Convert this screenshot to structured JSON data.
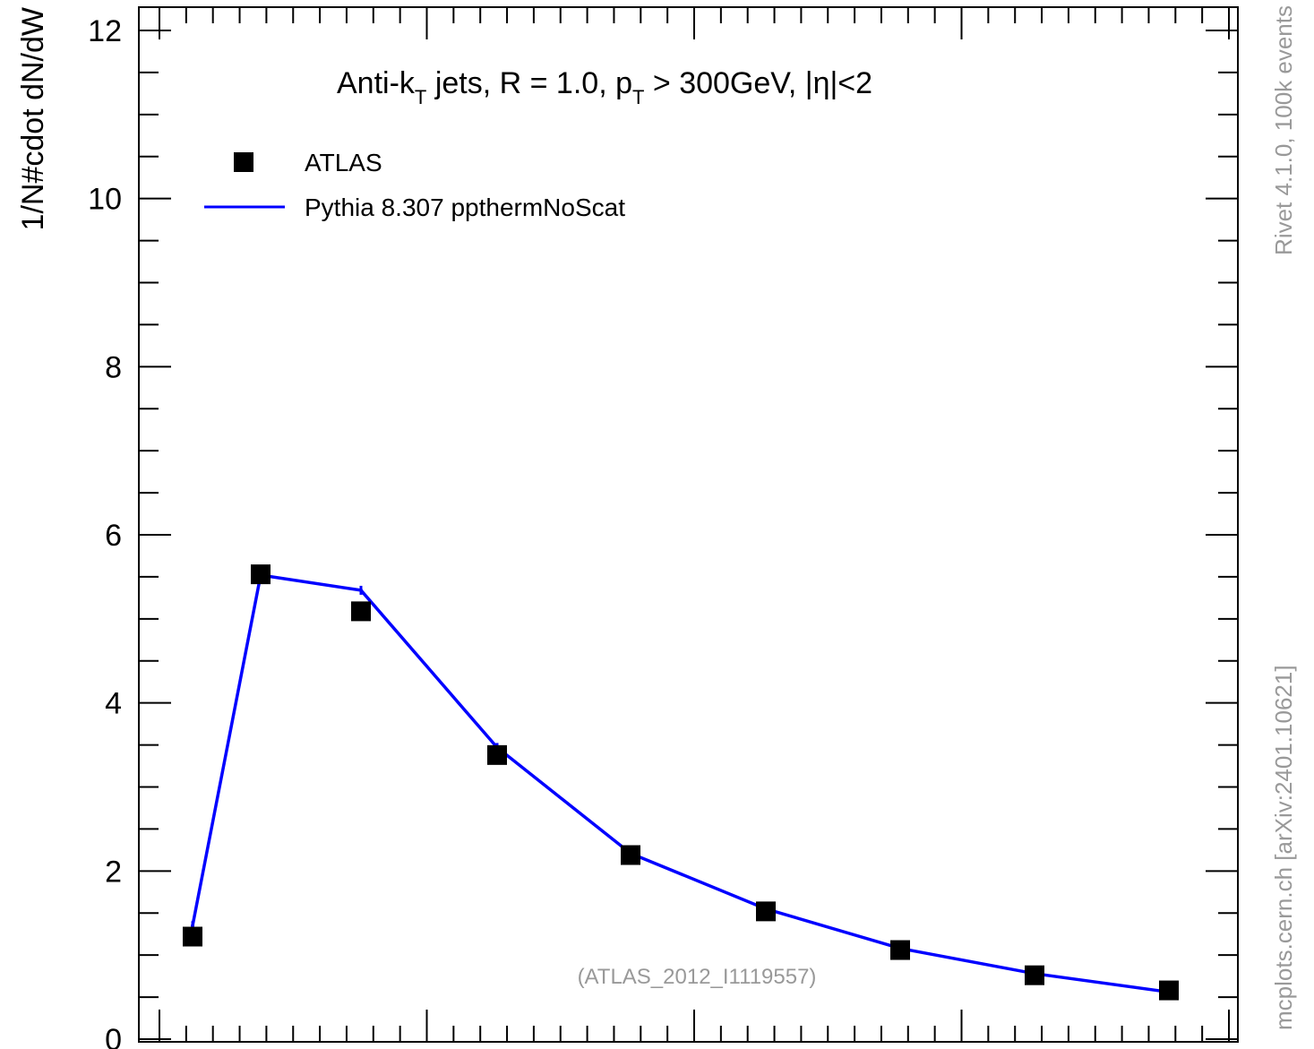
{
  "chart_data": {
    "type": "line",
    "title": "Anti-kT jets, R = 1.0, pT > 300GeV, |η|<2",
    "title_parts": {
      "lead": "Anti-k",
      "sub1": "T",
      "mid": " jets, R = 1.0, p",
      "sub2": "T",
      "tail": " > 300GeV, |η|<2"
    },
    "ylabel": "1/N#cdot dN/dW",
    "xlabel": "",
    "ylim": [
      0,
      12
    ],
    "y_ticks": [
      "0",
      "2",
      "4",
      "6",
      "8",
      "10",
      "12"
    ],
    "grid": false,
    "legend_position": "top-left",
    "x": [
      1,
      2,
      3,
      4,
      5,
      6,
      7,
      8,
      9
    ],
    "series": [
      {
        "name": "ATLAS",
        "marker": "square",
        "color": "#000000",
        "values": [
          1.22,
          5.53,
          5.09,
          3.38,
          2.19,
          1.52,
          1.06,
          0.76,
          0.58
        ]
      },
      {
        "name": "Pythia 8.307 ppthermNoScat",
        "marker": "line",
        "color": "#0000ff",
        "values": [
          1.35,
          5.52,
          5.34,
          3.47,
          2.21,
          1.55,
          1.08,
          0.78,
          0.56
        ]
      }
    ],
    "annotation": "(ATLAS_2012_I1119557)",
    "side_text_top": "Rivet 4.1.0,  100k events",
    "side_text_bottom": "mcplots.cern.ch [arXiv:2401.10621]"
  }
}
